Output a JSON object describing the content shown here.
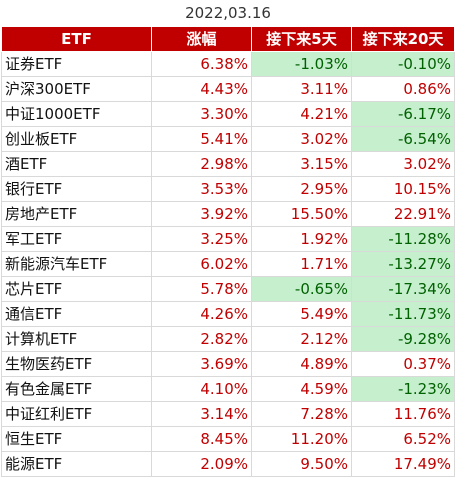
{
  "table": {
    "title": "2022,03.16",
    "header": [
      "ETF",
      "涨幅",
      "接下来5天",
      "接下来20天"
    ],
    "rows": [
      [
        "证券ETF",
        "6.38%",
        "-1.03%",
        "-0.10%"
      ],
      [
        "沪深300ETF",
        "4.43%",
        "3.11%",
        "0.86%"
      ],
      [
        "中证1000ETF",
        "3.30%",
        "4.21%",
        "-6.17%"
      ],
      [
        "创业板ETF",
        "5.41%",
        "3.02%",
        "-6.54%"
      ],
      [
        "酒ETF",
        "2.98%",
        "3.15%",
        "3.02%"
      ],
      [
        "银行ETF",
        "3.53%",
        "2.95%",
        "10.15%"
      ],
      [
        "房地产ETF",
        "3.92%",
        "15.50%",
        "22.91%"
      ],
      [
        "军工ETF",
        "3.25%",
        "1.92%",
        "-11.28%"
      ],
      [
        "新能源汽车ETF",
        "6.02%",
        "1.71%",
        "-13.27%"
      ],
      [
        "芯片ETF",
        "5.78%",
        "-0.65%",
        "-17.34%"
      ],
      [
        "通信ETF",
        "4.26%",
        "5.49%",
        "-11.73%"
      ],
      [
        "计算机ETF",
        "2.82%",
        "2.12%",
        "-9.28%"
      ],
      [
        "生物医药ETF",
        "3.69%",
        "4.89%",
        "0.37%"
      ],
      [
        "有色金属ETF",
        "4.10%",
        "4.59%",
        "-1.23%"
      ],
      [
        "中证红利ETF",
        "3.14%",
        "7.28%",
        "11.76%"
      ],
      [
        "恒生ETF",
        "8.45%",
        "11.20%",
        "6.52%"
      ],
      [
        "能源ETF",
        "2.09%",
        "9.50%",
        "17.49%"
      ]
    ]
  }
}
